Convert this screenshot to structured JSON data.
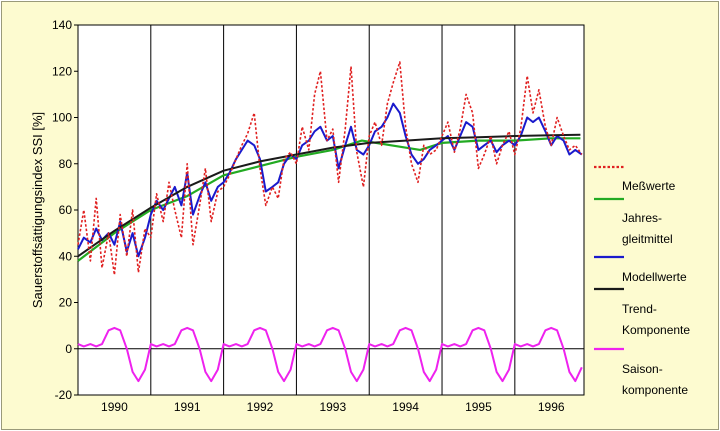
{
  "chart_data": {
    "type": "line",
    "title": "",
    "xlabel": "",
    "ylabel": "Sauerstoffsättigungsindex  SSI [%]",
    "xlim": [
      1990.0,
      1996.95
    ],
    "ylim": [
      -20,
      140
    ],
    "y_ticks": [
      -20,
      0,
      20,
      40,
      60,
      80,
      100,
      120,
      140
    ],
    "x_tick_labels": [
      "1990",
      "1991",
      "1992",
      "1993",
      "1994",
      "1995",
      "1996"
    ],
    "year_dividers": [
      1991,
      1992,
      1993,
      1994,
      1995,
      1996
    ],
    "grid": "vertical year lines and a horizontal line at 0",
    "legend_position": "right, outside plot",
    "series": [
      {
        "name": "Meßwerte",
        "color": "#e02020",
        "style": "dotted",
        "x": [
          1990.0,
          1990.08,
          1990.17,
          1990.25,
          1990.33,
          1990.42,
          1990.5,
          1990.58,
          1990.67,
          1990.75,
          1990.83,
          1990.92,
          1991.0,
          1991.08,
          1991.17,
          1991.25,
          1991.33,
          1991.42,
          1991.5,
          1991.58,
          1991.67,
          1991.75,
          1991.83,
          1991.92,
          1992.0,
          1992.08,
          1992.17,
          1992.25,
          1992.33,
          1992.42,
          1992.5,
          1992.58,
          1992.67,
          1992.75,
          1992.83,
          1992.92,
          1993.0,
          1993.08,
          1993.17,
          1993.25,
          1993.33,
          1993.42,
          1993.5,
          1993.58,
          1993.67,
          1993.75,
          1993.83,
          1993.92,
          1994.0,
          1994.08,
          1994.17,
          1994.25,
          1994.33,
          1994.42,
          1994.5,
          1994.58,
          1994.67,
          1994.75,
          1994.83,
          1994.92,
          1995.0,
          1995.08,
          1995.17,
          1995.25,
          1995.33,
          1995.42,
          1995.5,
          1995.58,
          1995.67,
          1995.75,
          1995.83,
          1995.92,
          1996.0,
          1996.08,
          1996.17,
          1996.25,
          1996.33,
          1996.42,
          1996.5,
          1996.58,
          1996.67,
          1996.75,
          1996.83,
          1996.92
        ],
        "y": [
          45,
          60,
          38,
          65,
          35,
          50,
          32,
          58,
          40,
          60,
          33,
          52,
          48,
          67,
          55,
          72,
          60,
          48,
          80,
          45,
          62,
          78,
          55,
          68,
          70,
          75,
          82,
          88,
          93,
          102,
          78,
          62,
          70,
          65,
          82,
          85,
          80,
          96,
          86,
          110,
          120,
          90,
          95,
          72,
          95,
          122,
          85,
          70,
          92,
          98,
          88,
          106,
          115,
          124,
          96,
          80,
          72,
          88,
          84,
          86,
          92,
          98,
          85,
          95,
          110,
          102,
          78,
          84,
          92,
          80,
          88,
          94,
          84,
          95,
          118,
          102,
          112,
          96,
          88,
          100,
          92,
          86,
          88,
          84
        ]
      },
      {
        "name": "Jahres-gleitmittel",
        "color": "#22aa22",
        "style": "solid",
        "x": [
          1990.0,
          1990.5,
          1991.0,
          1991.5,
          1992.0,
          1992.5,
          1993.0,
          1993.5,
          1993.9,
          1994.3,
          1994.7,
          1995.0,
          1995.5,
          1996.0,
          1996.5,
          1996.9
        ],
        "y": [
          38,
          50,
          60,
          66,
          75,
          79,
          83,
          86,
          90,
          88,
          86,
          89,
          90,
          90,
          91,
          91
        ]
      },
      {
        "name": "Modellwerte",
        "color": "#1a1acc",
        "style": "solid",
        "x": [
          1990.0,
          1990.08,
          1990.17,
          1990.25,
          1990.33,
          1990.42,
          1990.5,
          1990.58,
          1990.67,
          1990.75,
          1990.83,
          1990.92,
          1991.0,
          1991.08,
          1991.17,
          1991.25,
          1991.33,
          1991.42,
          1991.5,
          1991.58,
          1991.67,
          1991.75,
          1991.83,
          1991.92,
          1992.0,
          1992.08,
          1992.17,
          1992.25,
          1992.33,
          1992.42,
          1992.5,
          1992.58,
          1992.67,
          1992.75,
          1992.83,
          1992.92,
          1993.0,
          1993.08,
          1993.17,
          1993.25,
          1993.33,
          1993.42,
          1993.5,
          1993.58,
          1993.67,
          1993.75,
          1993.83,
          1993.92,
          1994.0,
          1994.08,
          1994.17,
          1994.25,
          1994.33,
          1994.42,
          1994.5,
          1994.58,
          1994.67,
          1994.75,
          1994.83,
          1994.92,
          1995.0,
          1995.08,
          1995.17,
          1995.25,
          1995.33,
          1995.42,
          1995.5,
          1995.58,
          1995.67,
          1995.75,
          1995.83,
          1995.92,
          1996.0,
          1996.08,
          1996.17,
          1996.25,
          1996.33,
          1996.42,
          1996.5,
          1996.58,
          1996.67,
          1996.75,
          1996.83,
          1996.92
        ],
        "y": [
          43,
          48,
          46,
          52,
          47,
          50,
          45,
          55,
          42,
          50,
          40,
          48,
          58,
          64,
          60,
          65,
          70,
          62,
          76,
          58,
          66,
          72,
          64,
          70,
          72,
          76,
          82,
          86,
          90,
          88,
          82,
          68,
          70,
          72,
          80,
          84,
          82,
          88,
          90,
          94,
          96,
          90,
          92,
          78,
          88,
          96,
          86,
          84,
          88,
          94,
          96,
          100,
          106,
          102,
          92,
          84,
          80,
          82,
          86,
          88,
          90,
          92,
          86,
          92,
          98,
          96,
          86,
          88,
          90,
          85,
          88,
          90,
          88,
          92,
          100,
          98,
          100,
          94,
          88,
          92,
          90,
          84,
          86,
          84
        ]
      },
      {
        "name": "Trend-Komponente",
        "color": "#1a1a1a",
        "style": "solid",
        "x": [
          1990.0,
          1990.5,
          1991.0,
          1991.5,
          1992.0,
          1992.5,
          1993.0,
          1993.5,
          1994.0,
          1994.5,
          1995.0,
          1995.5,
          1996.0,
          1996.5,
          1996.9
        ],
        "y": [
          40,
          51,
          61,
          70,
          77,
          81,
          84,
          87,
          89,
          90,
          91,
          91.5,
          92,
          92.3,
          92.5
        ]
      },
      {
        "name": "Saisonkomponente",
        "color": "#ee22ee",
        "style": "solid",
        "x": [
          1990.0,
          1990.08,
          1990.17,
          1990.25,
          1990.33,
          1990.42,
          1990.5,
          1990.58,
          1990.67,
          1990.75,
          1990.83,
          1990.92,
          1991.0,
          1991.08,
          1991.17,
          1991.25,
          1991.33,
          1991.42,
          1991.5,
          1991.58,
          1991.67,
          1991.75,
          1991.83,
          1991.92,
          1992.0,
          1992.08,
          1992.17,
          1992.25,
          1992.33,
          1992.42,
          1992.5,
          1992.58,
          1992.67,
          1992.75,
          1992.83,
          1992.92,
          1993.0,
          1993.08,
          1993.17,
          1993.25,
          1993.33,
          1993.42,
          1993.5,
          1993.58,
          1993.67,
          1993.75,
          1993.83,
          1993.92,
          1994.0,
          1994.08,
          1994.17,
          1994.25,
          1994.33,
          1994.42,
          1994.5,
          1994.58,
          1994.67,
          1994.75,
          1994.83,
          1994.92,
          1995.0,
          1995.08,
          1995.17,
          1995.25,
          1995.33,
          1995.42,
          1995.5,
          1995.58,
          1995.67,
          1995.75,
          1995.83,
          1995.92,
          1996.0,
          1996.08,
          1996.17,
          1996.25,
          1996.33,
          1996.42,
          1996.5,
          1996.58,
          1996.67,
          1996.75,
          1996.83,
          1996.92
        ],
        "y": [
          2,
          1,
          2,
          1,
          2,
          8,
          9,
          8,
          0,
          -10,
          -14,
          -9,
          2,
          1,
          2,
          1,
          2,
          8,
          9,
          8,
          0,
          -10,
          -14,
          -9,
          2,
          1,
          2,
          1,
          2,
          8,
          9,
          8,
          0,
          -10,
          -14,
          -9,
          2,
          1,
          2,
          1,
          2,
          8,
          9,
          8,
          0,
          -10,
          -14,
          -9,
          2,
          1,
          2,
          1,
          2,
          8,
          9,
          8,
          0,
          -10,
          -14,
          -9,
          2,
          1,
          2,
          1,
          2,
          8,
          9,
          8,
          0,
          -10,
          -14,
          -9,
          2,
          1,
          2,
          1,
          2,
          8,
          9,
          8,
          0,
          -10,
          -14,
          -8
        ]
      }
    ]
  },
  "legend": [
    {
      "label_lines": [
        "Meßwerte"
      ],
      "swatch_color": "#e02020",
      "swatch_style": "dotted"
    },
    {
      "label_lines": [
        "Jahres-",
        "gleitmittel"
      ],
      "swatch_color": "#22aa22",
      "swatch_style": "solid"
    },
    {
      "label_lines": [
        "Modellwerte"
      ],
      "swatch_color": "#1a1acc",
      "swatch_style": "solid"
    },
    {
      "label_lines": [
        "Trend-",
        "Komponente"
      ],
      "swatch_color": "#1a1a1a",
      "swatch_style": "solid"
    },
    {
      "label_lines": [
        "Saison-",
        "komponente"
      ],
      "swatch_color": "#ee22ee",
      "swatch_style": "solid"
    }
  ]
}
